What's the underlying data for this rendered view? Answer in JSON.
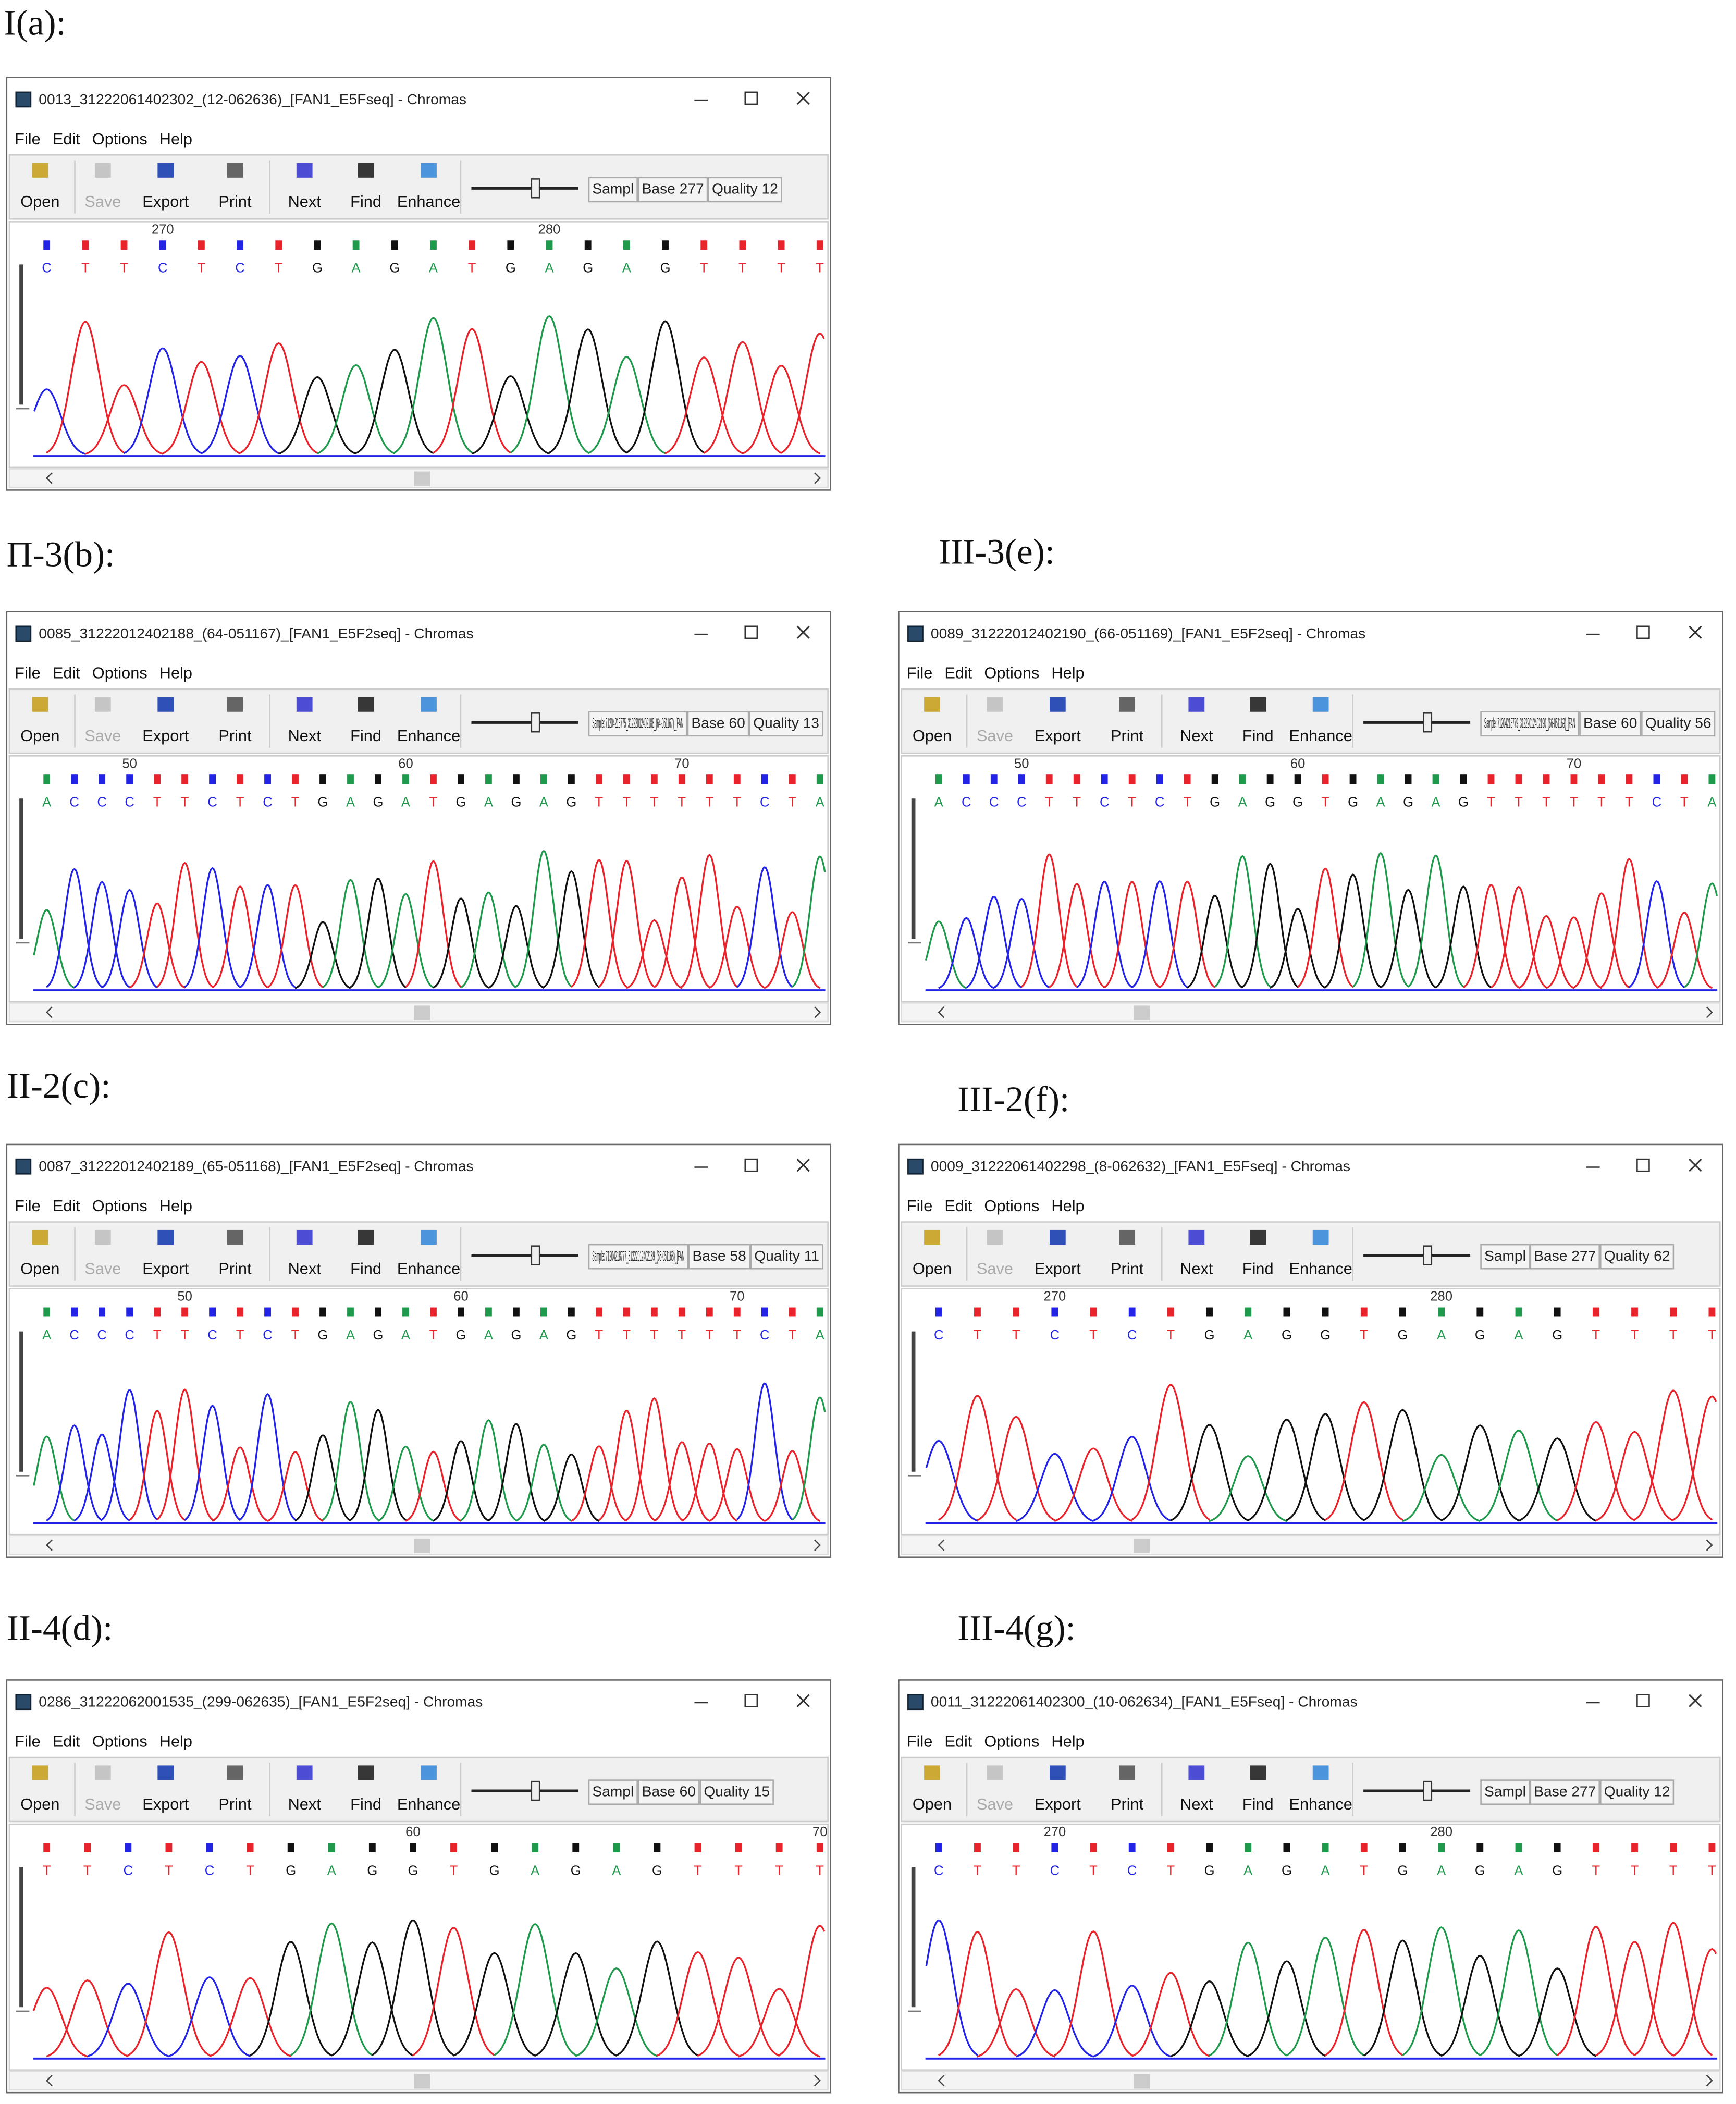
{
  "menu": [
    "File",
    "Edit",
    "Options",
    "Help"
  ],
  "toolbar": [
    "Open",
    "Save",
    "Export",
    "Print",
    "Next",
    "Find",
    "Enhance"
  ],
  "base_colors": {
    "A": "#1f9a4c",
    "C": "#2323e6",
    "G": "#111111",
    "T": "#e8232b"
  },
  "panels": [
    {
      "label": "I(a):",
      "title": "0013_31222061402302_(12-062636)_[FAN1_E5Fseq] - Chromas",
      "info": [
        "Sampl",
        "Base 277",
        "Quality 12"
      ],
      "bases": [
        "C",
        "T",
        "T",
        "C",
        "T",
        "C",
        "T",
        "G",
        "A",
        "G",
        "A",
        "T",
        "G",
        "A",
        "G",
        "A",
        "G",
        "T",
        "T",
        "T",
        "T"
      ],
      "ruler": [
        null,
        null,
        null,
        "270",
        null,
        null,
        null,
        null,
        null,
        null,
        null,
        null,
        null,
        "280",
        null,
        null,
        null,
        null,
        null,
        null,
        null
      ]
    },
    {
      "label": "Π-3(b):",
      "title": "0085_31222012402188_(64-051167)_[FAN1_E5F2seq] - Chromas",
      "info": [
        "Sample: 71204218775_31222012402188_(64-051167)_[FAN",
        "Base 60",
        "Quality 13"
      ],
      "bases": [
        "A",
        "C",
        "C",
        "C",
        "T",
        "T",
        "C",
        "T",
        "C",
        "T",
        "G",
        "A",
        "G",
        "A",
        "T",
        "G",
        "A",
        "G",
        "A",
        "G",
        "T",
        "T",
        "T",
        "T",
        "T",
        "T",
        "C",
        "T",
        "A"
      ],
      "ruler": [
        null,
        null,
        null,
        "50",
        null,
        null,
        null,
        null,
        null,
        null,
        null,
        null,
        null,
        "60",
        null,
        null,
        null,
        null,
        null,
        null,
        null,
        null,
        null,
        "70",
        null,
        null,
        null,
        null,
        null
      ]
    },
    {
      "label": "III-3(e):",
      "title": "0089_31222012402190_(66-051169)_[FAN1_E5F2seq] - Chromas",
      "info": [
        "Sample: 71204218779_31222012402190_(66-051169)_[FAN",
        "Base 60",
        "Quality 56"
      ],
      "bases": [
        "A",
        "C",
        "C",
        "C",
        "T",
        "T",
        "C",
        "T",
        "C",
        "T",
        "G",
        "A",
        "G",
        "G",
        "T",
        "G",
        "A",
        "G",
        "A",
        "G",
        "T",
        "T",
        "T",
        "T",
        "T",
        "T",
        "C",
        "T",
        "A"
      ],
      "ruler": [
        null,
        null,
        null,
        "50",
        null,
        null,
        null,
        null,
        null,
        null,
        null,
        null,
        null,
        "60",
        null,
        null,
        null,
        null,
        null,
        null,
        null,
        null,
        null,
        "70",
        null,
        null,
        null,
        null,
        null
      ]
    },
    {
      "label": "II-2(c):",
      "title": "0087_31222012402189_(65-051168)_[FAN1_E5F2seq] - Chromas",
      "info": [
        "Sample: 71204218777_31222012402189_(65-051168)_[FAN",
        "Base 58",
        "Quality 11"
      ],
      "bases": [
        "A",
        "C",
        "C",
        "C",
        "T",
        "T",
        "C",
        "T",
        "C",
        "T",
        "G",
        "A",
        "G",
        "A",
        "T",
        "G",
        "A",
        "G",
        "A",
        "G",
        "T",
        "T",
        "T",
        "T",
        "T",
        "T",
        "C",
        "T",
        "A"
      ],
      "ruler": [
        null,
        null,
        null,
        null,
        null,
        "50",
        null,
        null,
        null,
        null,
        null,
        null,
        null,
        null,
        null,
        "60",
        null,
        null,
        null,
        null,
        null,
        null,
        null,
        null,
        null,
        "70",
        null,
        null,
        null
      ]
    },
    {
      "label": "III-2(f):",
      "title": "0009_31222061402298_(8-062632)_[FAN1_E5Fseq] - Chromas",
      "info": [
        "Sampl",
        "Base 277",
        "Quality 62"
      ],
      "bases": [
        "C",
        "T",
        "T",
        "C",
        "T",
        "C",
        "T",
        "G",
        "A",
        "G",
        "G",
        "T",
        "G",
        "A",
        "G",
        "A",
        "G",
        "T",
        "T",
        "T",
        "T"
      ],
      "ruler": [
        null,
        null,
        null,
        "270",
        null,
        null,
        null,
        null,
        null,
        null,
        null,
        null,
        null,
        "280",
        null,
        null,
        null,
        null,
        null,
        null,
        null
      ]
    },
    {
      "label": "II-4(d):",
      "title": "0286_31222062001535_(299-062635)_[FAN1_E5F2seq] - Chromas",
      "info": [
        "Sampl",
        "Base 60",
        "Quality 15"
      ],
      "bases": [
        "T",
        "T",
        "C",
        "T",
        "C",
        "T",
        "G",
        "A",
        "G",
        "G",
        "T",
        "G",
        "A",
        "G",
        "A",
        "G",
        "T",
        "T",
        "T",
        "T"
      ],
      "ruler": [
        null,
        null,
        null,
        null,
        null,
        null,
        null,
        null,
        null,
        "60",
        null,
        null,
        null,
        null,
        null,
        null,
        null,
        null,
        null,
        "70"
      ]
    },
    {
      "label": "III-4(g):",
      "title": "0011_31222061402300_(10-062634)_[FAN1_E5Fseq] - Chromas",
      "info": [
        "Sampl",
        "Base 277",
        "Quality 12"
      ],
      "bases": [
        "C",
        "T",
        "T",
        "C",
        "T",
        "C",
        "T",
        "G",
        "A",
        "G",
        "A",
        "T",
        "G",
        "A",
        "G",
        "A",
        "G",
        "T",
        "T",
        "T",
        "T"
      ],
      "ruler": [
        null,
        null,
        null,
        "270",
        null,
        null,
        null,
        null,
        null,
        null,
        null,
        null,
        null,
        "280",
        null,
        null,
        null,
        null,
        null,
        null,
        null
      ]
    }
  ]
}
